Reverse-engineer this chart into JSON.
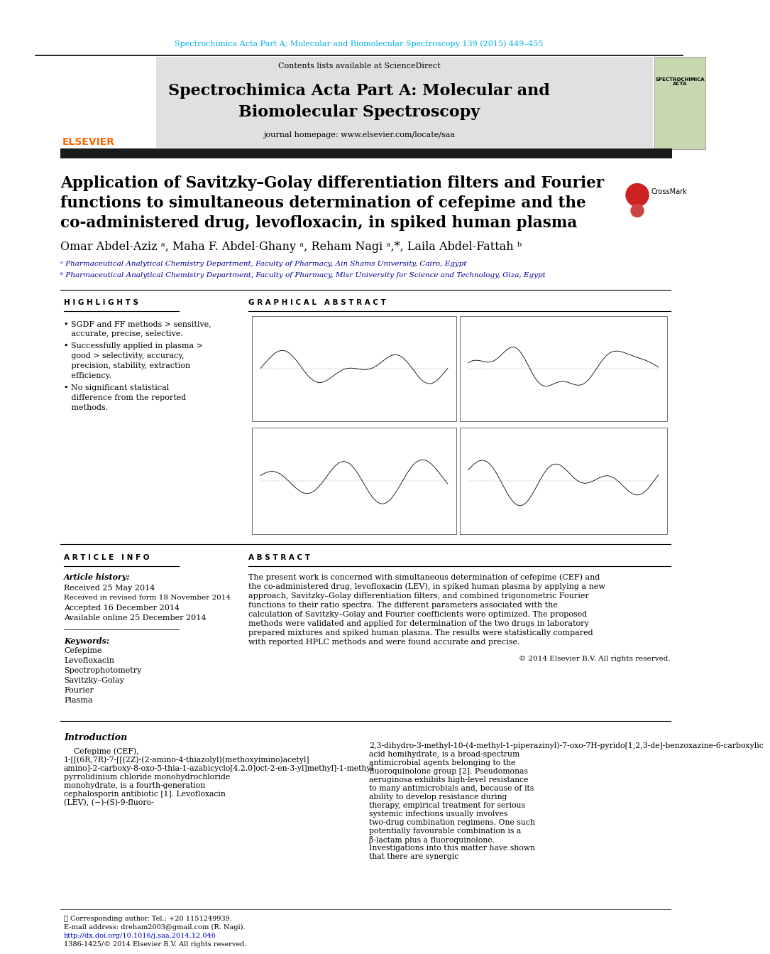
{
  "journal_ref": "Spectrochimica Acta Part A; Molecular and Biomolecular Spectroscopy 139 (2015) 449–455",
  "journal_ref_color": "#00AEEF",
  "contents_text": "Contents lists available at ",
  "sciencedirect_text": "ScienceDirect",
  "sciencedirect_color": "#00AEEF",
  "journal_name_line1": "Spectrochimica Acta Part A: Molecular and",
  "journal_name_line2": "Biomolecular Spectroscopy",
  "homepage_text": "journal homepage: www.elsevier.com/locate/saa",
  "elsevier_color": "#FF6600",
  "elsevier_text": "ELSEVIER",
  "header_bg": "#E0E0E0",
  "black_bar_color": "#1a1a1a",
  "title_line1": "Application of Savitzky–Golay differentiation filters and Fourier",
  "title_line2": "functions to simultaneous determination of cefepime and the",
  "title_line3": "co-administered drug, levofloxacin, in spiked human plasma",
  "authors": "Omar Abdel-Aziz ᵃ, Maha F. Abdel-Ghany ᵃ, Reham Nagi ᵃ,*, Laila Abdel-Fattah ᵇ",
  "affil_a": "ᵃ Pharmaceutical Analytical Chemistry Department, Faculty of Pharmacy, Ain Shams University, Cairo, Egypt",
  "affil_b": "ᵇ Pharmaceutical Analytical Chemistry Department, Faculty of Pharmacy, Misr University for Science and Technology, Giza, Egypt",
  "affil_color": "#000099",
  "highlights_title": "H I G H L I G H T S",
  "highlights": [
    "SGDF and FF methods > sensitive, accurate, precise, selective.",
    "Successfully applied in plasma > good > selectivity, accuracy, precision, stability, extraction efficiency.",
    "No significant statistical difference from the reported methods."
  ],
  "graphical_abstract_title": "G R A P H I C A L   A B S T R A C T",
  "article_info_title": "A R T I C L E   I N F O",
  "article_history_label": "Article history:",
  "received": "Received 25 May 2014",
  "received_revised": "Received in revised form 18 November 2014",
  "accepted": "Accepted 16 December 2014",
  "available": "Available online 25 December 2014",
  "keywords_label": "Keywords:",
  "keywords": [
    "Cefepime",
    "Levofloxacin",
    "Spectrophotometry",
    "Savitzky–Golay",
    "Fourier",
    "Plasma"
  ],
  "abstract_title": "A B S T R A C T",
  "abstract_text": "The present work is concerned with simultaneous determination of cefepime (CEF) and the co-administered drug, levofloxacin (LEV), in spiked human plasma by applying a new approach, Savitzky–Golay differentiation filters, and combined trigonometric Fourier functions to their ratio spectra. The different parameters associated with the calculation of Savitzky–Golay and Fourier coefficients were optimized. The proposed methods were validated and applied for determination of the two drugs in laboratory prepared mixtures and spiked human plasma. The results were statistically compared with reported HPLC methods and were found accurate and precise.",
  "copyright_text": "© 2014 Elsevier B.V. All rights reserved.",
  "intro_title": "Introduction",
  "intro_text1": "Cefepime (CEF), 1-[[(6R,7R)-7-[[(2Z)-(2-amino-4-thiazolyl)(methoxyimino)acetyl] amino]-2-carboxy-8-oxo-5-thia-1-azabicyclo[4.2.0]oct-2-en-3-yl]methyl]-1-methyl pyrrolidinium chloride monohydrochloride monohydrate, is a fourth-generation cephalosporin antibiotic [1]. Levofloxacin (LEV), (−)-(S)-9-fluoro-",
  "intro_text2": "2,3-dihydro-3-methyl-10-(4-methyl-1-piperazinyl)-7-oxo-7H-pyrido[1,2,3-de]-benzoxazine-6-carboxylic acid hemihydrate, is a broad-spectrum antimicrobial agents belonging to the fluoroquinolone group [2].",
  "intro_text3": "Pseudomonas aeruginosa exhibits high-level resistance to many antimicrobials and, because of its ability to develop resistance during therapy, empirical treatment for serious systemic infections usually involves two-drug combination regimens. One such potentially favourable combination is a β-lactam plus a fluoroquinolone. Investigations into this matter have shown that there are synergic",
  "footer_doi": "http://dx.doi.org/10.1016/j.saa.2014.12.046",
  "footer_issn": "1386-1425/© 2014 Elsevier B.V. All rights reserved.",
  "footer_doi_color": "#0000CC",
  "bg_color": "#FFFFFF",
  "text_color": "#000000",
  "cover_bg": "#C8D8B0",
  "crossmark_red": "#CC2222",
  "crossmark_red2": "#CC4444"
}
